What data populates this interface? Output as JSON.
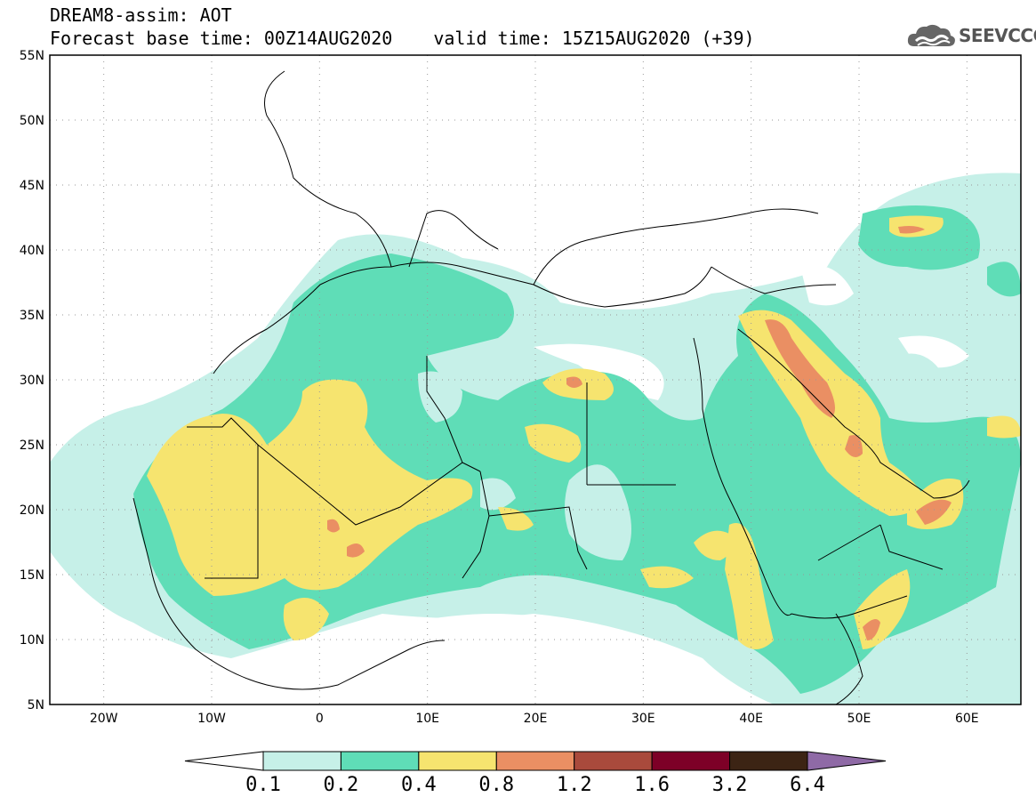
{
  "header": {
    "title": "DREAM8-assim: AOT",
    "base_time": "Forecast base time: 00Z14AUG2020",
    "valid_time": "valid time: 15Z15AUG2020 (+39)"
  },
  "logo": {
    "text": "SEEVCCC",
    "icon": "cloud-icon"
  },
  "map": {
    "lat_labels": [
      "55N",
      "50N",
      "45N",
      "40N",
      "35N",
      "30N",
      "25N",
      "20N",
      "15N",
      "10N",
      "5N"
    ],
    "lon_labels": [
      "20W",
      "10W",
      "0",
      "10E",
      "20E",
      "30E",
      "40E",
      "50E",
      "60E"
    ],
    "lat_range": [
      5,
      55
    ],
    "lon_range": [
      -25,
      65
    ]
  },
  "legend": {
    "labels": [
      "0.1",
      "0.2",
      "0.4",
      "0.8",
      "1.2",
      "1.6",
      "3.2",
      "6.4"
    ],
    "colors": [
      "#ffffff",
      "#c6f0e8",
      "#5fddb7",
      "#f6e46f",
      "#ea8f63",
      "#a94a3c",
      "#7d0027",
      "#3c2414",
      "#8f6aa6"
    ]
  }
}
